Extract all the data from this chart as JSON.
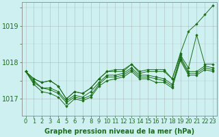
{
  "background_color": "#cff0f0",
  "plot_bg_color": "#cff0f0",
  "grid_color": "#999999",
  "line_color": "#1a6e1a",
  "marker_color": "#1a6e1a",
  "xlabel": "Graphe pression niveau de la mer (hPa)",
  "xlabel_fontsize": 7,
  "tick_fontsize": 6,
  "xlim": [
    -0.5,
    23.5
  ],
  "ylim": [
    1016.55,
    1019.65
  ],
  "yticks": [
    1017,
    1018,
    1019
  ],
  "series": [
    [
      1017.75,
      1017.55,
      1017.45,
      1017.5,
      1017.35,
      1017.0,
      1017.2,
      1017.15,
      1017.3,
      1017.55,
      1017.75,
      1017.8,
      1017.8,
      1017.95,
      1017.75,
      1017.8,
      1017.8,
      1017.8,
      1017.55,
      1018.25,
      1018.85,
      1019.05,
      1019.3,
      1019.55
    ],
    [
      1017.75,
      1017.55,
      1017.45,
      1017.5,
      1017.35,
      1017.0,
      1017.2,
      1017.15,
      1017.3,
      1017.55,
      1017.75,
      1017.75,
      1017.75,
      1017.95,
      1017.7,
      1017.75,
      1017.75,
      1017.75,
      1017.55,
      1018.2,
      1017.85,
      1018.75,
      1017.95,
      1017.95
    ],
    [
      1017.75,
      1017.5,
      1017.3,
      1017.3,
      1017.2,
      1016.95,
      1017.1,
      1017.05,
      1017.2,
      1017.45,
      1017.65,
      1017.65,
      1017.7,
      1017.85,
      1017.65,
      1017.65,
      1017.6,
      1017.55,
      1017.4,
      1018.15,
      1017.75,
      1017.75,
      1017.9,
      1017.85
    ],
    [
      1017.75,
      1017.45,
      1017.3,
      1017.25,
      1017.15,
      1016.9,
      1017.05,
      1017.0,
      1017.1,
      1017.4,
      1017.6,
      1017.6,
      1017.65,
      1017.8,
      1017.6,
      1017.6,
      1017.55,
      1017.5,
      1017.35,
      1018.1,
      1017.7,
      1017.7,
      1017.85,
      1017.8
    ],
    [
      1017.75,
      1017.4,
      1017.2,
      1017.15,
      1017.05,
      1016.8,
      1017.0,
      1016.95,
      1017.05,
      1017.35,
      1017.5,
      1017.55,
      1017.6,
      1017.75,
      1017.55,
      1017.55,
      1017.45,
      1017.45,
      1017.3,
      1018.05,
      1017.65,
      1017.65,
      1017.8,
      1017.75
    ]
  ]
}
